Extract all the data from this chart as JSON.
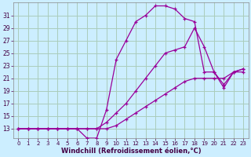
{
  "xlabel": "Windchill (Refroidissement éolien,°C)",
  "bg_color": "#cceeff",
  "grid_color": "#aaccbb",
  "line_color": "#990099",
  "xlim": [
    -0.5,
    23.5
  ],
  "ylim": [
    11.5,
    33
  ],
  "xticks": [
    0,
    1,
    2,
    3,
    4,
    5,
    6,
    7,
    8,
    9,
    10,
    11,
    12,
    13,
    14,
    15,
    16,
    17,
    18,
    19,
    20,
    21,
    22,
    23
  ],
  "yticks": [
    13,
    15,
    17,
    19,
    21,
    23,
    25,
    27,
    29,
    31
  ],
  "series": [
    {
      "x": [
        0,
        1,
        2,
        3,
        4,
        5,
        6,
        7,
        8,
        9,
        10,
        11,
        12,
        13,
        14,
        15,
        16,
        17,
        18,
        19,
        20,
        21,
        22,
        23
      ],
      "y": [
        13,
        13,
        13,
        13,
        13,
        13,
        13,
        11.5,
        11.5,
        16,
        24,
        27,
        30,
        31,
        32.5,
        32.5,
        32,
        30.5,
        30,
        22,
        22,
        20,
        22,
        22
      ]
    },
    {
      "x": [
        0,
        1,
        2,
        3,
        4,
        5,
        6,
        7,
        8,
        9,
        10,
        11,
        12,
        13,
        14,
        15,
        16,
        17,
        18,
        19,
        20,
        21,
        22,
        23
      ],
      "y": [
        13,
        13,
        13,
        13,
        13,
        13,
        13,
        13,
        13,
        14,
        15.5,
        17,
        19,
        21,
        23,
        25,
        25.5,
        26,
        29,
        26,
        22,
        19.5,
        22,
        22.5
      ]
    },
    {
      "x": [
        0,
        1,
        2,
        3,
        4,
        5,
        6,
        7,
        8,
        9,
        10,
        11,
        12,
        13,
        14,
        15,
        16,
        17,
        18,
        19,
        20,
        21,
        22,
        23
      ],
      "y": [
        13,
        13,
        13,
        13,
        13,
        13,
        13,
        13,
        13,
        13,
        13.5,
        14.5,
        15.5,
        16.5,
        17.5,
        18.5,
        19.5,
        20.5,
        21,
        21,
        21,
        21,
        22,
        22.5
      ]
    }
  ]
}
